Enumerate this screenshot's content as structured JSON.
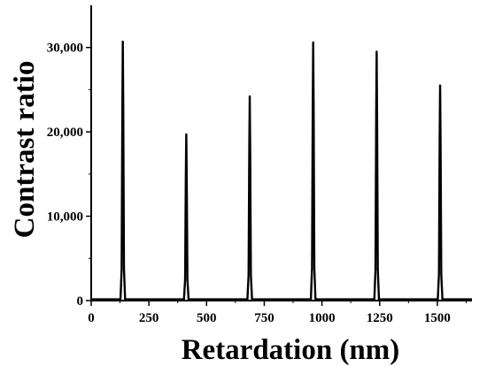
{
  "chart_data": {
    "type": "line",
    "title": "",
    "xlabel": "Retardation (nm)",
    "ylabel": "Contrast ratio",
    "xlim": [
      0,
      1650
    ],
    "ylim": [
      0,
      35000
    ],
    "x_ticks": [
      0,
      250,
      500,
      750,
      1000,
      1250,
      1500
    ],
    "x_tick_labels": [
      "0",
      "250",
      "500",
      "750",
      "1000",
      "1250",
      "1500"
    ],
    "y_ticks": [
      0,
      10000,
      20000,
      30000
    ],
    "y_tick_labels": [
      "0",
      "10,000",
      "20,000",
      "30,000"
    ],
    "grid": false,
    "legend": "none",
    "line_color": "#000000",
    "series": [
      {
        "peaks": [
          {
            "x": 137,
            "y": 30700
          },
          {
            "x": 412,
            "y": 19700
          },
          {
            "x": 687,
            "y": 24200
          },
          {
            "x": 962,
            "y": 30600
          },
          {
            "x": 1237,
            "y": 29500
          },
          {
            "x": 1512,
            "y": 25500
          }
        ],
        "baseline": 150
      }
    ]
  }
}
